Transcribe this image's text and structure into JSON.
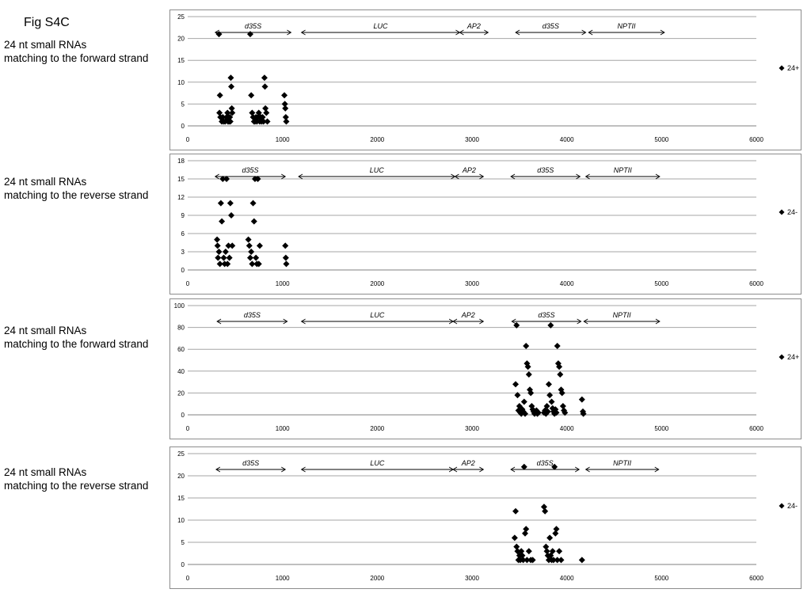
{
  "figure_title": "Fig S4C",
  "panels": [
    {
      "label_line1": "24 nt small RNAs",
      "label_line2": "matching to the forward strand"
    },
    {
      "label_line1": "24 nt small RNAs",
      "label_line2": "matching to the reverse strand"
    },
    {
      "label_line1": "24 nt small RNAs",
      "label_line2": "matching to the forward strand"
    },
    {
      "label_line1": "24 nt small RNAs",
      "label_line2": "matching to the reverse strand"
    }
  ],
  "colors": {
    "marker": "#000000",
    "grid": "#a6a6a6",
    "border": "#8c8c8c"
  },
  "chart_data": [
    {
      "type": "scatter",
      "title": "",
      "xlabel": "",
      "ylabel": "",
      "xlim": [
        0,
        6000
      ],
      "ylim": [
        0,
        25
      ],
      "xticks": [
        0,
        1000,
        2000,
        3000,
        4000,
        5000,
        6000
      ],
      "yticks": [
        0,
        5,
        10,
        15,
        20,
        25
      ],
      "grid": true,
      "legend_position": "right",
      "gene_annotations": [
        {
          "label": "d35S",
          "start": 290,
          "end": 1090
        },
        {
          "label": "LUC",
          "start": 1200,
          "end": 2870
        },
        {
          "label": "AP2",
          "start": 2870,
          "end": 3170
        },
        {
          "label": "d35S",
          "start": 3460,
          "end": 4200
        },
        {
          "label": "NPTII",
          "start": 4230,
          "end": 5030
        }
      ],
      "series": [
        {
          "name": "24+",
          "marker": "diamond",
          "x": [
            330,
            340,
            335,
            345,
            360,
            370,
            380,
            395,
            410,
            420,
            425,
            430,
            435,
            445,
            450,
            455,
            460,
            465,
            470,
            660,
            670,
            680,
            690,
            700,
            710,
            720,
            730,
            740,
            750,
            760,
            770,
            780,
            790,
            800,
            810,
            815,
            820,
            830,
            840,
            1020,
            1025,
            1030,
            1035,
            1040
          ],
          "y": [
            21,
            7,
            3,
            2,
            1,
            2,
            1,
            1,
            2,
            3,
            1,
            2,
            1,
            2,
            1,
            11,
            9,
            4,
            3,
            21,
            7,
            3,
            2,
            1,
            1,
            2,
            1,
            2,
            3,
            1,
            2,
            1,
            2,
            1,
            11,
            9,
            4,
            3,
            1,
            7,
            5,
            4,
            2,
            1
          ]
        }
      ]
    },
    {
      "type": "scatter",
      "title": "",
      "xlabel": "",
      "ylabel": "",
      "xlim": [
        0,
        6000
      ],
      "ylim": [
        0,
        18
      ],
      "xticks": [
        0,
        1000,
        2000,
        3000,
        4000,
        5000,
        6000
      ],
      "yticks": [
        0,
        3,
        6,
        9,
        12,
        15,
        18
      ],
      "grid": true,
      "legend_position": "right",
      "gene_annotations": [
        {
          "label": "d35S",
          "start": 290,
          "end": 1030
        },
        {
          "label": "LUC",
          "start": 1170,
          "end": 2820
        },
        {
          "label": "AP2",
          "start": 2820,
          "end": 3120
        },
        {
          "label": "d35S",
          "start": 3410,
          "end": 4140
        },
        {
          "label": "NPTII",
          "start": 4200,
          "end": 4980
        }
      ],
      "series": [
        {
          "name": "24-",
          "marker": "diamond",
          "x": [
            310,
            315,
            320,
            330,
            340,
            350,
            360,
            370,
            380,
            390,
            400,
            410,
            420,
            430,
            440,
            450,
            460,
            470,
            640,
            650,
            660,
            670,
            680,
            690,
            700,
            710,
            720,
            730,
            740,
            750,
            760,
            1030,
            1035,
            1040
          ],
          "y": [
            5,
            4,
            2,
            3,
            1,
            11,
            8,
            15,
            2,
            1,
            3,
            15,
            1,
            4,
            2,
            11,
            9,
            4,
            5,
            4,
            2,
            3,
            1,
            11,
            8,
            15,
            2,
            1,
            15,
            1,
            4,
            4,
            2,
            1
          ]
        }
      ]
    },
    {
      "type": "scatter",
      "title": "",
      "xlabel": "",
      "ylabel": "",
      "xlim": [
        0,
        6000
      ],
      "ylim": [
        0,
        100
      ],
      "xticks": [
        0,
        1000,
        2000,
        3000,
        4000,
        5000,
        6000
      ],
      "yticks": [
        0,
        20,
        40,
        60,
        80,
        100
      ],
      "grid": true,
      "legend_position": "right",
      "gene_annotations": [
        {
          "label": "d35S",
          "start": 310,
          "end": 1050
        },
        {
          "label": "LUC",
          "start": 1200,
          "end": 2800
        },
        {
          "label": "AP2",
          "start": 2800,
          "end": 3120
        },
        {
          "label": "d35S",
          "start": 3420,
          "end": 4150
        },
        {
          "label": "NPTII",
          "start": 4180,
          "end": 4980
        }
      ],
      "series": [
        {
          "name": "24+",
          "marker": "diamond",
          "x": [
            3460,
            3470,
            3480,
            3490,
            3500,
            3510,
            3520,
            3530,
            3540,
            3550,
            3560,
            3570,
            3580,
            3590,
            3600,
            3610,
            3620,
            3630,
            3640,
            3650,
            3660,
            3670,
            3680,
            3690,
            3700,
            3760,
            3770,
            3780,
            3790,
            3800,
            3810,
            3820,
            3830,
            3840,
            3850,
            3860,
            3870,
            3880,
            3890,
            3900,
            3910,
            3920,
            3930,
            3940,
            3950,
            3960,
            3970,
            3980,
            4160,
            4170,
            4175
          ],
          "y": [
            28,
            82,
            18,
            4,
            8,
            2,
            1,
            5,
            3,
            12,
            1,
            63,
            47,
            44,
            37,
            23,
            20,
            8,
            5,
            3,
            1,
            2,
            4,
            1,
            2,
            2,
            4,
            1,
            8,
            3,
            28,
            18,
            82,
            12,
            6,
            3,
            1,
            5,
            2,
            63,
            47,
            44,
            37,
            23,
            20,
            8,
            4,
            2,
            14,
            3,
            1
          ]
        }
      ]
    },
    {
      "type": "scatter",
      "title": "",
      "xlabel": "",
      "ylabel": "",
      "xlim": [
        0,
        6000
      ],
      "ylim": [
        0,
        25
      ],
      "xticks": [
        0,
        1000,
        2000,
        3000,
        4000,
        5000,
        6000
      ],
      "yticks": [
        0,
        5,
        10,
        15,
        20,
        25
      ],
      "grid": true,
      "legend_position": "right",
      "gene_annotations": [
        {
          "label": "d35S",
          "start": 300,
          "end": 1030
        },
        {
          "label": "LUC",
          "start": 1200,
          "end": 2800
        },
        {
          "label": "AP2",
          "start": 2800,
          "end": 3120
        },
        {
          "label": "d35S",
          "start": 3410,
          "end": 4130
        },
        {
          "label": "NPTII",
          "start": 4200,
          "end": 4970
        }
      ],
      "series": [
        {
          "name": "24-",
          "marker": "diamond",
          "x": [
            3450,
            3460,
            3470,
            3480,
            3490,
            3500,
            3510,
            3520,
            3530,
            3540,
            3550,
            3560,
            3570,
            3580,
            3600,
            3620,
            3640,
            3760,
            3770,
            3780,
            3790,
            3800,
            3810,
            3820,
            3830,
            3840,
            3850,
            3860,
            3870,
            3880,
            3890,
            3900,
            3920,
            3940,
            4160
          ],
          "y": [
            6,
            12,
            4,
            3,
            1,
            2,
            1,
            3,
            2,
            1,
            22,
            7,
            8,
            1,
            3,
            1,
            1,
            13,
            12,
            4,
            3,
            2,
            1,
            6,
            2,
            1,
            3,
            1,
            22,
            7,
            8,
            1,
            3,
            1,
            1
          ]
        }
      ]
    }
  ]
}
